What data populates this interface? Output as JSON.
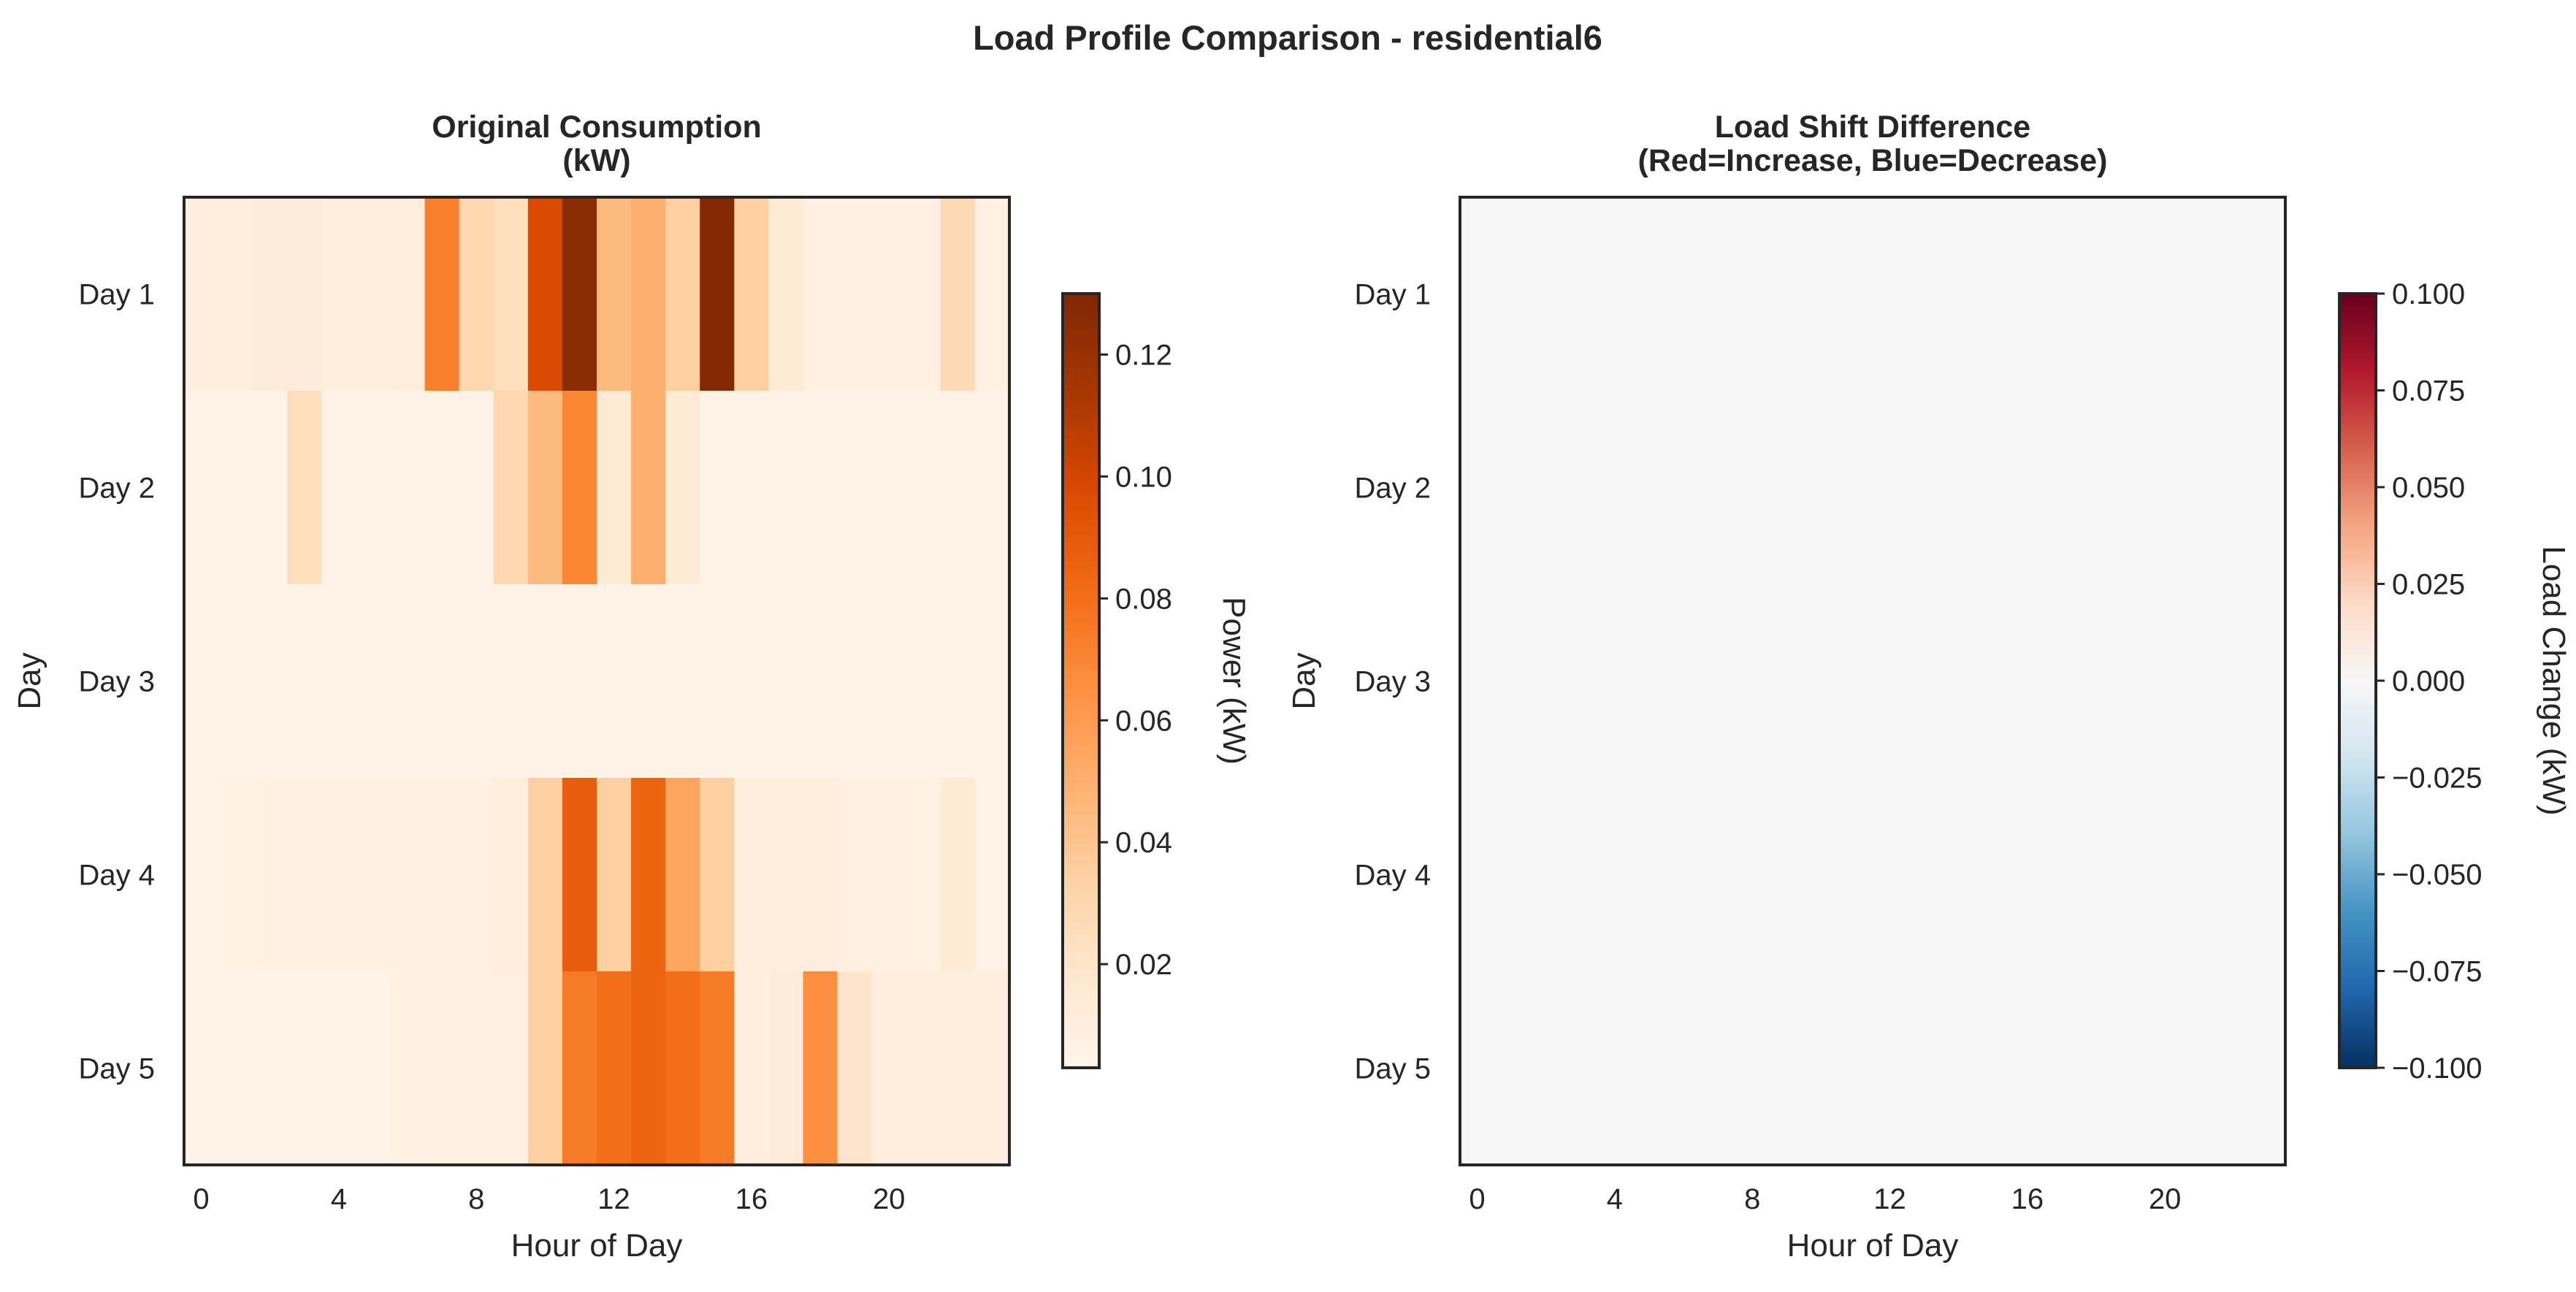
{
  "figure": {
    "title": "Load Profile Comparison - residential6"
  },
  "chart_data": [
    {
      "type": "heatmap",
      "title_lines": [
        "Original Consumption",
        "(kW)"
      ],
      "xlabel": "Hour of Day",
      "ylabel": "Day",
      "x_ticks": [
        "0",
        "4",
        "8",
        "12",
        "16",
        "20"
      ],
      "x_tick_values": [
        0,
        4,
        8,
        12,
        16,
        20
      ],
      "rows": [
        "Day 1",
        "Day 2",
        "Day 3",
        "Day 4",
        "Day 5"
      ],
      "colormap": "Oranges",
      "colorbar": {
        "label": "Power (kW)",
        "vmin": 0.003,
        "vmax": 0.13,
        "ticks": [
          "0.02",
          "0.04",
          "0.06",
          "0.08",
          "0.10",
          "0.12"
        ],
        "tick_values": [
          0.02,
          0.04,
          0.06,
          0.08,
          0.1,
          0.12
        ]
      },
      "values": [
        [
          0.01,
          0.01,
          0.012,
          0.012,
          0.01,
          0.01,
          0.011,
          0.072,
          0.03,
          0.025,
          0.098,
          0.125,
          0.045,
          0.05,
          0.035,
          0.128,
          0.035,
          0.015,
          0.008,
          0.008,
          0.008,
          0.008,
          0.028,
          0.008
        ],
        [
          0.006,
          0.006,
          0.006,
          0.025,
          0.006,
          0.006,
          0.006,
          0.006,
          0.006,
          0.03,
          0.045,
          0.07,
          0.015,
          0.05,
          0.015,
          0.006,
          0.006,
          0.006,
          0.006,
          0.006,
          0.006,
          0.006,
          0.006,
          0.006
        ],
        [
          0.005,
          0.005,
          0.005,
          0.005,
          0.005,
          0.005,
          0.005,
          0.005,
          0.005,
          0.005,
          0.005,
          0.005,
          0.005,
          0.005,
          0.005,
          0.005,
          0.005,
          0.005,
          0.005,
          0.005,
          0.005,
          0.005,
          0.005,
          0.005
        ],
        [
          0.005,
          0.007,
          0.008,
          0.008,
          0.008,
          0.008,
          0.008,
          0.008,
          0.008,
          0.01,
          0.035,
          0.088,
          0.035,
          0.085,
          0.055,
          0.035,
          0.01,
          0.01,
          0.01,
          0.008,
          0.008,
          0.008,
          0.015,
          0.005
        ],
        [
          0.005,
          0.006,
          0.006,
          0.006,
          0.006,
          0.006,
          0.008,
          0.008,
          0.008,
          0.008,
          0.035,
          0.075,
          0.08,
          0.085,
          0.08,
          0.075,
          0.01,
          0.012,
          0.065,
          0.02,
          0.01,
          0.01,
          0.01,
          0.01
        ]
      ]
    },
    {
      "type": "heatmap",
      "title_lines": [
        "Load Shift Difference",
        "(Red=Increase, Blue=Decrease)"
      ],
      "xlabel": "Hour of Day",
      "ylabel": "Day",
      "x_ticks": [
        "0",
        "4",
        "8",
        "12",
        "16",
        "20"
      ],
      "x_tick_values": [
        0,
        4,
        8,
        12,
        16,
        20
      ],
      "rows": [
        "Day 1",
        "Day 2",
        "Day 3",
        "Day 4",
        "Day 5"
      ],
      "colormap": "RdBu_r",
      "colorbar": {
        "label": "Load Change (kW)",
        "vmin": -0.1,
        "vmax": 0.1,
        "ticks": [
          "0.100",
          "0.075",
          "0.050",
          "0.025",
          "0.000",
          "−0.025",
          "−0.050",
          "−0.075",
          "−0.100"
        ],
        "tick_values": [
          0.1,
          0.075,
          0.05,
          0.025,
          0.0,
          -0.025,
          -0.05,
          -0.075,
          -0.1
        ]
      },
      "values": [
        [
          0,
          0,
          0,
          0,
          0,
          0,
          0,
          0,
          0,
          0,
          0,
          0,
          0,
          0,
          0,
          0,
          0,
          0,
          0,
          0,
          0,
          0,
          0,
          0
        ],
        [
          0,
          0,
          0,
          0,
          0,
          0,
          0,
          0,
          0,
          0,
          0,
          0,
          0,
          0,
          0,
          0,
          0,
          0,
          0,
          0,
          0,
          0,
          0,
          0
        ],
        [
          0,
          0,
          0,
          0,
          0,
          0,
          0,
          0,
          0,
          0,
          0,
          0,
          0,
          0,
          0,
          0,
          0,
          0,
          0,
          0,
          0,
          0,
          0,
          0
        ],
        [
          0,
          0,
          0,
          0,
          0,
          0,
          0,
          0,
          0,
          0,
          0,
          0,
          0,
          0,
          0,
          0,
          0,
          0,
          0,
          0,
          0,
          0,
          0,
          0
        ],
        [
          0,
          0,
          0,
          0,
          0,
          0,
          0,
          0,
          0,
          0,
          0,
          0,
          0,
          0,
          0,
          0,
          0,
          0,
          0,
          0,
          0,
          0,
          0,
          0
        ]
      ]
    }
  ]
}
